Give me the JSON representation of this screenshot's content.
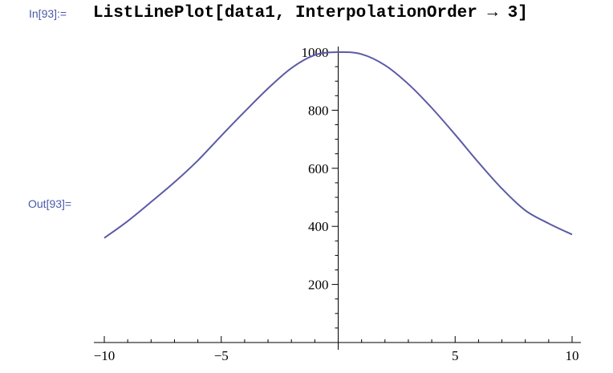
{
  "cell": {
    "input_label": "In[93]:=",
    "input_code": "ListLinePlot[data1, InterpolationOrder → 3]",
    "output_label": "Out[93]="
  },
  "colors": {
    "line": "#5b5aa6",
    "cell_label": "#4b5aa8",
    "axis": "#000000"
  },
  "chart_data": {
    "type": "line",
    "title": "",
    "xlabel": "",
    "ylabel": "",
    "xlim": [
      -10,
      10
    ],
    "ylim": [
      0,
      1000
    ],
    "x_ticks": [
      -10,
      -5,
      5,
      10
    ],
    "x_tick_labels": [
      "−10",
      "−5",
      "5",
      "10"
    ],
    "y_ticks": [
      200,
      400,
      600,
      800,
      1000
    ],
    "y_tick_labels": [
      "200",
      "400",
      "600",
      "800",
      "1000"
    ],
    "x_minor_step": 1,
    "y_minor_step": 50,
    "grid": false,
    "series": [
      {
        "x": [
          -10,
          -9,
          -8,
          -7,
          -6,
          -5,
          -4,
          -3,
          -2,
          -1,
          0,
          1,
          2,
          3,
          4,
          5,
          6,
          7,
          8,
          9,
          10
        ],
        "values": [
          360,
          418,
          484,
          552,
          627,
          712,
          795,
          875,
          945,
          990,
          1000,
          993,
          955,
          890,
          808,
          716,
          620,
          530,
          455,
          410,
          372
        ]
      }
    ]
  }
}
